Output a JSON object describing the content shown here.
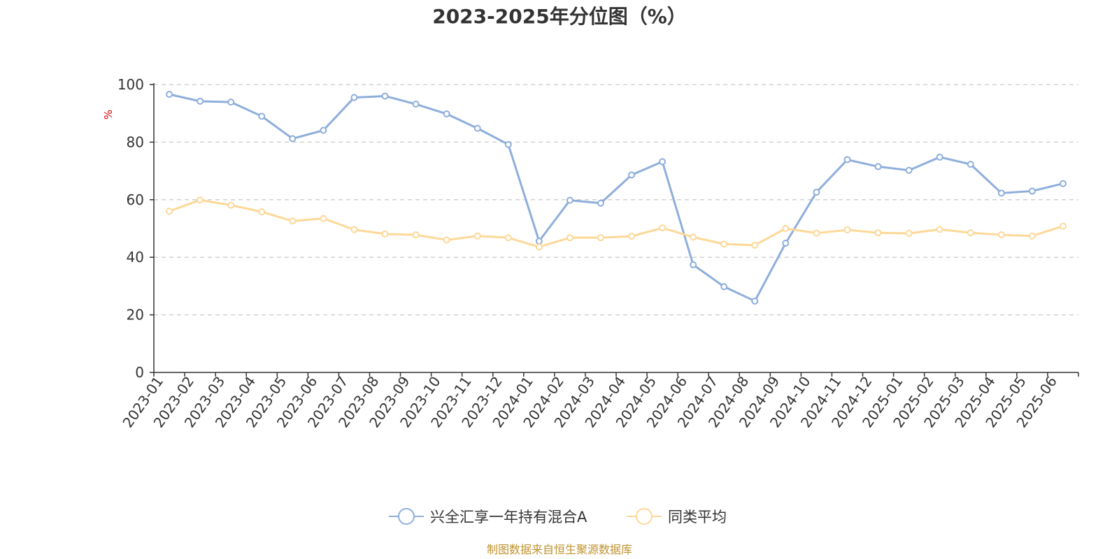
{
  "chart_data": {
    "type": "line",
    "title": "2023-2025年分位图（%）",
    "ylabel": "%",
    "ylim": [
      0,
      100
    ],
    "yticks": [
      0,
      20,
      40,
      60,
      80,
      100
    ],
    "grid": true,
    "legend_position": "bottom-center",
    "categories": [
      "2023-01",
      "2023-02",
      "2023-03",
      "2023-04",
      "2023-05",
      "2023-06",
      "2023-07",
      "2023-08",
      "2023-09",
      "2023-10",
      "2023-11",
      "2023-12",
      "2024-01",
      "2024-02",
      "2024-03",
      "2024-04",
      "2024-05",
      "2024-06",
      "2024-07",
      "2024-08",
      "2024-09",
      "2024-10",
      "2024-11",
      "2024-12",
      "2025-01",
      "2025-02",
      "2025-03",
      "2025-04",
      "2025-05",
      "2025-06"
    ],
    "series": [
      {
        "name": "兴全汇享一年持有混合A",
        "color": "#8eaedb",
        "values": [
          96.6,
          94.2,
          93.9,
          89.0,
          81.2,
          84.1,
          95.5,
          96.0,
          93.2,
          89.8,
          84.8,
          79.2,
          45.6,
          59.8,
          58.8,
          68.6,
          73.2,
          37.4,
          29.8,
          24.8,
          44.9,
          62.6,
          73.9,
          71.5,
          70.2,
          74.8,
          72.3,
          62.3,
          63.0,
          65.6
        ]
      },
      {
        "name": "同类平均",
        "color": "#fdd898",
        "values": [
          56.0,
          59.9,
          58.1,
          55.8,
          52.6,
          53.5,
          49.6,
          48.1,
          47.8,
          46.0,
          47.4,
          46.8,
          43.6,
          46.8,
          46.8,
          47.3,
          50.2,
          47.0,
          44.6,
          44.2,
          50.0,
          48.4,
          49.5,
          48.5,
          48.3,
          49.7,
          48.5,
          47.8,
          47.4,
          50.8
        ]
      }
    ]
  },
  "source_text": "制图数据来自恒生聚源数据库"
}
